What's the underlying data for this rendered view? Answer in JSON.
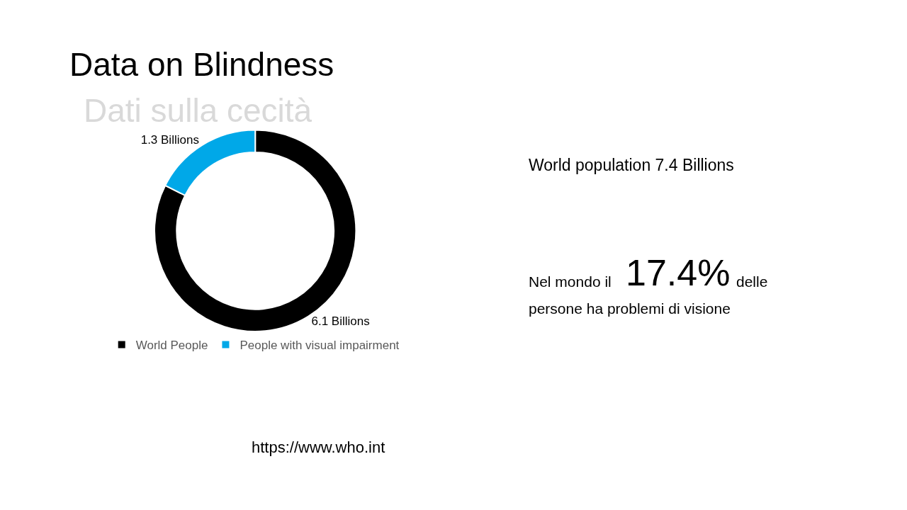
{
  "chart_data": [
    {
      "type": "donut",
      "title": "Data on Blindness",
      "subtitle": "Dati sulla cecità",
      "categories": [
        "World People",
        "People with visual impairment"
      ],
      "values": [
        6.1,
        1.3
      ],
      "colors": [
        "#000000",
        "#00a8e8"
      ],
      "value_labels": [
        "6.1 Billions",
        "1.3 Billions"
      ],
      "legend": "bottom",
      "annotations": [
        "https://www.who.int"
      ]
    },
    {
      "type": "other",
      "title": "World population 7.4 Billions",
      "annotations": [
        "Nel mondo il",
        "17.4%",
        "delle",
        "persone ha problemi di visione"
      ]
    }
  ]
}
